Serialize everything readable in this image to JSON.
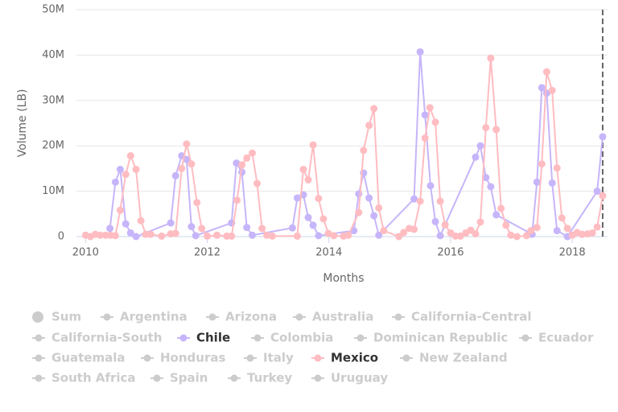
{
  "chart_data": {
    "type": "line",
    "x_axis_label": "Months",
    "y_axis_label": "Volume (LB)",
    "xlim": [
      2009.85,
      2018.58
    ],
    "xticks": [
      2010,
      2012,
      2014,
      2016,
      2018
    ],
    "ylim": [
      0,
      50000000
    ],
    "yticks": [
      0,
      {
        "value": 10000000,
        "label": "10M"
      },
      {
        "value": 20000000,
        "label": "20M"
      },
      {
        "value": 30000000,
        "label": "30M"
      },
      {
        "value": 40000000,
        "label": "40M"
      },
      {
        "value": 50000000,
        "label": "50M"
      }
    ],
    "grid": true,
    "plot_line_x": 2018.5,
    "series": [
      {
        "name": "Sum",
        "visible": false
      },
      {
        "name": "Argentina",
        "visible": false
      },
      {
        "name": "Arizona",
        "visible": false
      },
      {
        "name": "Australia",
        "visible": false
      },
      {
        "name": "California-Central",
        "visible": false
      },
      {
        "name": "California-South",
        "visible": false
      },
      {
        "name": "Chile",
        "visible": true,
        "color": "#c6b5fa",
        "x": [
          2010.4,
          2010.49,
          2010.57,
          2010.66,
          2010.74,
          2010.83,
          2011.4,
          2011.48,
          2011.58,
          2011.66,
          2011.74,
          2011.81,
          2012.4,
          2012.48,
          2012.57,
          2012.65,
          2012.74,
          2013.4,
          2013.48,
          2013.58,
          2013.66,
          2013.74,
          2013.83,
          2014.41,
          2014.49,
          2014.57,
          2014.66,
          2014.74,
          2014.82,
          2015.4,
          2015.5,
          2015.58,
          2015.67,
          2015.75,
          2015.83,
          2016.41,
          2016.49,
          2016.58,
          2016.66,
          2016.75,
          2017.34,
          2017.42,
          2017.5,
          2017.58,
          2017.67,
          2017.75,
          2017.92,
          2018.41,
          2018.5
        ],
        "values": [
          1800000,
          12000000,
          14800000,
          2800000,
          800000,
          0,
          3000000,
          13400000,
          17800000,
          17000000,
          2200000,
          200000,
          3000000,
          16200000,
          14200000,
          2000000,
          300000,
          1900000,
          8500000,
          9200000,
          4200000,
          2500000,
          200000,
          1300000,
          9400000,
          14000000,
          8500000,
          4600000,
          300000,
          8300000,
          40700000,
          26800000,
          11200000,
          3300000,
          200000,
          17500000,
          20000000,
          13000000,
          11000000,
          4800000,
          500000,
          12000000,
          32800000,
          31600000,
          11800000,
          1300000,
          0,
          10000000,
          22000000
        ]
      },
      {
        "name": "Colombia",
        "visible": false
      },
      {
        "name": "Dominican Republic",
        "visible": false
      },
      {
        "name": "Ecuador",
        "visible": false
      },
      {
        "name": "Guatemala",
        "visible": false
      },
      {
        "name": "Honduras",
        "visible": false
      },
      {
        "name": "Italy",
        "visible": false
      },
      {
        "name": "Mexico",
        "visible": true,
        "color": "#ffbcc1",
        "x": [
          2010.0,
          2010.08,
          2010.16,
          2010.24,
          2010.33,
          2010.41,
          2010.49,
          2010.57,
          2010.66,
          2010.74,
          2010.83,
          2010.91,
          2010.99,
          2011.07,
          2011.25,
          2011.4,
          2011.48,
          2011.58,
          2011.66,
          2011.74,
          2011.83,
          2011.91,
          2012.0,
          2012.16,
          2012.32,
          2012.4,
          2012.49,
          2012.57,
          2012.65,
          2012.74,
          2012.82,
          2012.9,
          2012.98,
          2013.07,
          2013.48,
          2013.58,
          2013.66,
          2013.74,
          2013.83,
          2013.91,
          2013.99,
          2014.08,
          2014.24,
          2014.32,
          2014.49,
          2014.57,
          2014.66,
          2014.74,
          2014.82,
          2014.9,
          2015.15,
          2015.23,
          2015.32,
          2015.4,
          2015.5,
          2015.58,
          2015.66,
          2015.75,
          2015.83,
          2015.91,
          2016.0,
          2016.08,
          2016.16,
          2016.25,
          2016.33,
          2016.41,
          2016.49,
          2016.58,
          2016.66,
          2016.75,
          2016.83,
          2016.91,
          2016.99,
          2017.09,
          2017.25,
          2017.32,
          2017.42,
          2017.5,
          2017.58,
          2017.67,
          2017.75,
          2017.83,
          2017.92,
          2018.0,
          2018.08,
          2018.16,
          2018.25,
          2018.33,
          2018.41,
          2018.5
        ],
        "values": [
          300000,
          0,
          500000,
          300000,
          300000,
          300000,
          200000,
          5800000,
          13700000,
          17800000,
          14800000,
          3500000,
          500000,
          500000,
          100000,
          600000,
          700000,
          15000000,
          20400000,
          16000000,
          7500000,
          1800000,
          100000,
          300000,
          100000,
          100000,
          8000000,
          15800000,
          17300000,
          18400000,
          11700000,
          1800000,
          300000,
          100000,
          100000,
          14800000,
          12500000,
          20200000,
          8400000,
          3900000,
          700000,
          200000,
          100000,
          300000,
          5300000,
          19000000,
          24500000,
          28200000,
          6300000,
          1300000,
          0,
          900000,
          1800000,
          1600000,
          7800000,
          21700000,
          28400000,
          25200000,
          7800000,
          2600000,
          800000,
          100000,
          100000,
          800000,
          1400000,
          600000,
          3200000,
          24000000,
          39300000,
          23600000,
          6200000,
          2500000,
          300000,
          0,
          200000,
          1300000,
          2000000,
          16000000,
          36300000,
          32200000,
          15100000,
          4100000,
          1800000,
          300000,
          900000,
          500000,
          600000,
          800000,
          2100000,
          9000000
        ]
      },
      {
        "name": "New Zealand",
        "visible": false
      },
      {
        "name": "South Africa",
        "visible": false
      },
      {
        "name": "Spain",
        "visible": false
      },
      {
        "name": "Turkey",
        "visible": false
      },
      {
        "name": "Uruguay",
        "visible": false
      }
    ]
  }
}
